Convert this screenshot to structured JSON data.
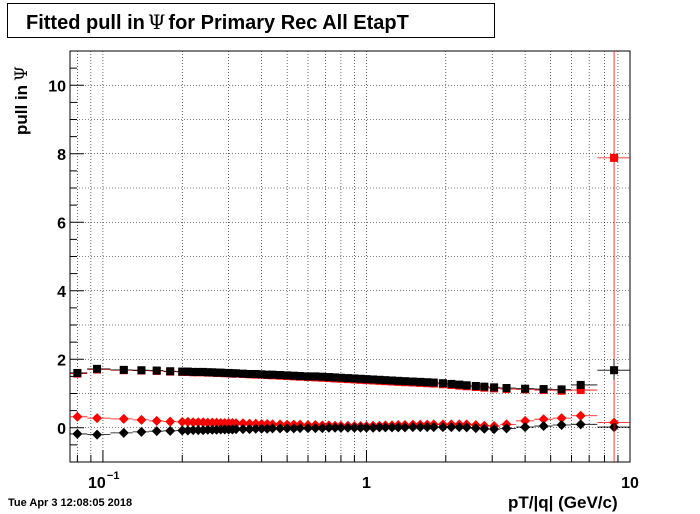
{
  "title_prefix": "Fitted pull in",
  "title_symbol": "Ψ",
  "title_suffix": "for Primary Rec All EtapT",
  "timestamp": "Tue Apr  3 12:08:05 2018",
  "xlabel": "pT/|q| (GeV/c)",
  "ylabel_prefix": "pull in",
  "ylabel_symbol": "Ψ",
  "chart_data": {
    "type": "scatter",
    "xscale": "log",
    "xlim": [
      0.075,
      10.0
    ],
    "ylim": [
      -1,
      11
    ],
    "grid": true,
    "legend": "none",
    "xticks": [
      {
        "value": 0.1,
        "base": "10",
        "exp": "−1"
      },
      {
        "value": 1,
        "label": "1"
      },
      {
        "value": 10,
        "label": "10"
      }
    ],
    "yticks": [
      0,
      2,
      4,
      6,
      8,
      10
    ],
    "x": [
      0.08,
      0.095,
      0.12,
      0.14,
      0.16,
      0.18,
      0.2,
      0.21,
      0.22,
      0.23,
      0.24,
      0.25,
      0.26,
      0.27,
      0.28,
      0.29,
      0.3,
      0.31,
      0.32,
      0.34,
      0.36,
      0.38,
      0.4,
      0.42,
      0.44,
      0.47,
      0.5,
      0.53,
      0.56,
      0.6,
      0.64,
      0.68,
      0.72,
      0.76,
      0.8,
      0.85,
      0.9,
      0.95,
      1.0,
      1.06,
      1.12,
      1.18,
      1.25,
      1.32,
      1.4,
      1.5,
      1.6,
      1.7,
      1.8,
      1.95,
      2.1,
      2.25,
      2.4,
      2.6,
      2.8,
      3.05,
      3.4,
      4.0,
      4.7,
      5.5,
      6.5,
      8.7
    ],
    "series": [
      {
        "color": "#ff0000",
        "marker": "square",
        "values": [
          1.58,
          1.7,
          1.68,
          1.67,
          1.66,
          1.64,
          1.63,
          1.63,
          1.62,
          1.62,
          1.62,
          1.61,
          1.61,
          1.6,
          1.6,
          1.59,
          1.59,
          1.58,
          1.58,
          1.57,
          1.56,
          1.55,
          1.55,
          1.54,
          1.53,
          1.52,
          1.51,
          1.5,
          1.49,
          1.48,
          1.47,
          1.46,
          1.45,
          1.44,
          1.43,
          1.42,
          1.41,
          1.4,
          1.39,
          1.38,
          1.37,
          1.36,
          1.35,
          1.34,
          1.33,
          1.32,
          1.31,
          1.3,
          1.29,
          1.27,
          1.25,
          1.23,
          1.21,
          1.19,
          1.17,
          1.15,
          1.13,
          1.12,
          1.1,
          1.08,
          1.1,
          7.88
        ]
      },
      {
        "color": "#000000",
        "marker": "square",
        "values": [
          1.6,
          1.72,
          1.69,
          1.68,
          1.67,
          1.65,
          1.64,
          1.64,
          1.63,
          1.63,
          1.63,
          1.62,
          1.62,
          1.61,
          1.61,
          1.6,
          1.6,
          1.59,
          1.59,
          1.58,
          1.57,
          1.57,
          1.56,
          1.55,
          1.55,
          1.54,
          1.53,
          1.52,
          1.51,
          1.5,
          1.5,
          1.49,
          1.48,
          1.47,
          1.46,
          1.45,
          1.44,
          1.43,
          1.42,
          1.41,
          1.4,
          1.39,
          1.38,
          1.37,
          1.36,
          1.35,
          1.34,
          1.33,
          1.32,
          1.3,
          1.28,
          1.26,
          1.24,
          1.22,
          1.2,
          1.18,
          1.16,
          1.14,
          1.13,
          1.12,
          1.25,
          1.68
        ]
      },
      {
        "color": "#ff0000",
        "marker": "diamond",
        "values": [
          0.32,
          0.28,
          0.26,
          0.23,
          0.2,
          0.18,
          0.17,
          0.17,
          0.16,
          0.16,
          0.16,
          0.15,
          0.15,
          0.15,
          0.14,
          0.14,
          0.14,
          0.14,
          0.13,
          0.13,
          0.12,
          0.12,
          0.11,
          0.11,
          0.1,
          0.1,
          0.09,
          0.09,
          0.09,
          0.08,
          0.08,
          0.07,
          0.07,
          0.06,
          0.06,
          0.06,
          0.05,
          0.05,
          0.05,
          0.06,
          0.06,
          0.07,
          0.07,
          0.08,
          0.08,
          0.09,
          0.09,
          0.09,
          0.1,
          0.1,
          0.1,
          0.1,
          0.1,
          0.08,
          0.06,
          0.05,
          0.1,
          0.2,
          0.25,
          0.28,
          0.35,
          0.15
        ]
      },
      {
        "color": "#000000",
        "marker": "diamond",
        "values": [
          -0.18,
          -0.2,
          -0.15,
          -0.12,
          -0.1,
          -0.09,
          -0.08,
          -0.08,
          -0.07,
          -0.07,
          -0.07,
          -0.06,
          -0.06,
          -0.06,
          -0.05,
          -0.05,
          -0.05,
          -0.05,
          -0.04,
          -0.04,
          -0.04,
          -0.03,
          -0.03,
          -0.03,
          -0.02,
          -0.02,
          -0.02,
          -0.02,
          -0.01,
          -0.01,
          -0.01,
          -0.01,
          0.0,
          0.0,
          0.0,
          0.0,
          0.0,
          0.0,
          0.0,
          0.0,
          0.01,
          0.01,
          0.01,
          0.01,
          0.01,
          0.02,
          0.02,
          0.02,
          0.02,
          0.02,
          0.02,
          0.02,
          0.01,
          -0.01,
          -0.03,
          -0.04,
          -0.02,
          0.02,
          0.05,
          0.08,
          0.1,
          0.02
        ]
      }
    ]
  }
}
